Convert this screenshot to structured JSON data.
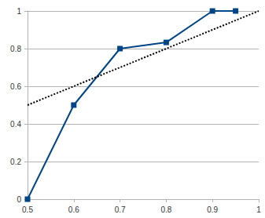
{
  "chart_data": {
    "type": "line",
    "series": [
      {
        "x": [
          0.5,
          0.6,
          0.7,
          0.8,
          0.9,
          0.95
        ],
        "values": [
          0,
          0.5,
          0.8,
          0.833,
          1,
          1
        ],
        "color": "#004586",
        "marker": "square",
        "line_style": "solid"
      },
      {
        "x": [
          0.5,
          1
        ],
        "values": [
          0.5,
          1
        ],
        "color": "#000000",
        "marker": "none",
        "line_style": "dotted"
      }
    ],
    "xlim": [
      0.5,
      1
    ],
    "xticks": [
      0.5,
      0.6,
      0.7,
      0.8,
      0.9,
      1
    ],
    "ylim": [
      0,
      1
    ],
    "yticks": [
      0,
      0.2,
      0.4,
      0.6,
      0.8,
      1
    ],
    "grid": "y"
  }
}
